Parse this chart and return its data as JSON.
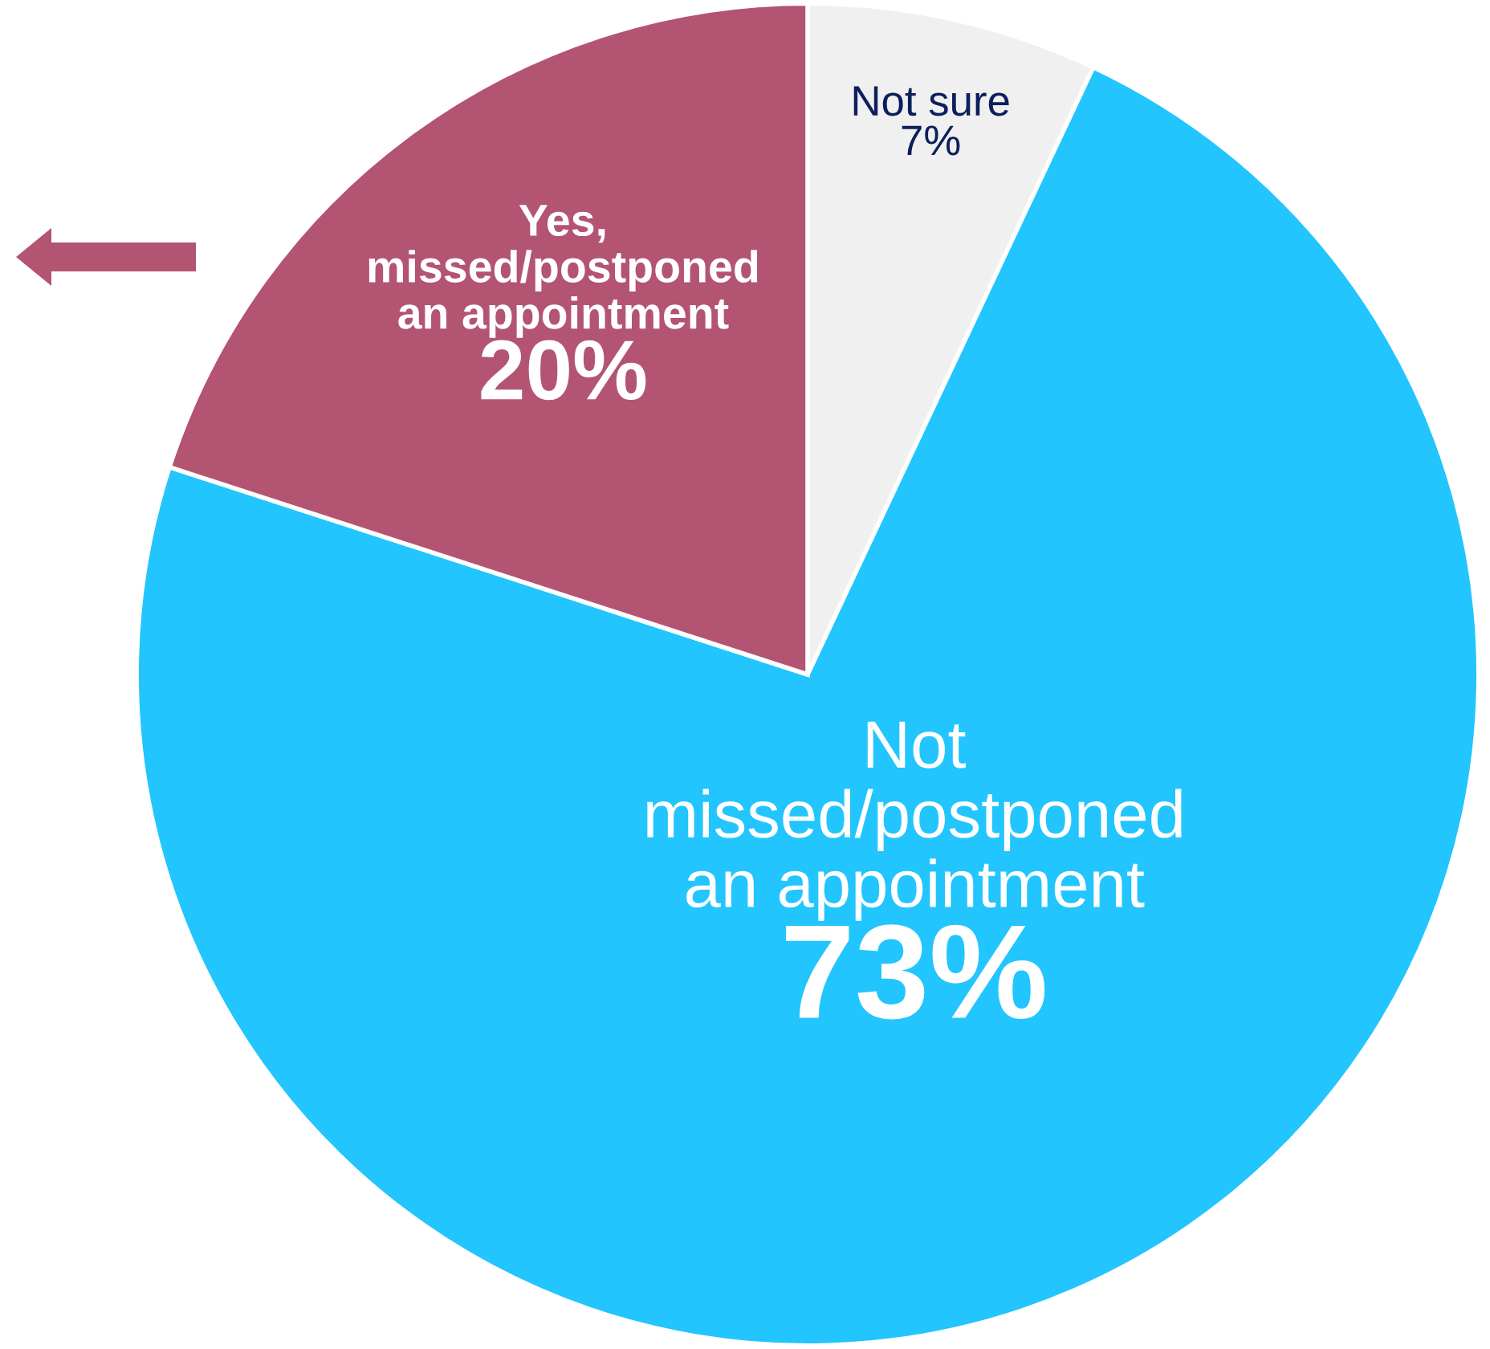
{
  "chart_data": {
    "type": "pie",
    "categories": [
      "Not sure",
      "Not\nmissed/postponed\nan appointment",
      "Yes,\nmissed/postponed\nan appointment"
    ],
    "values": [
      7,
      73,
      20
    ],
    "value_labels": [
      "7%",
      "73%",
      "20%"
    ],
    "colors": [
      "#f0f0f0",
      "#22c5fd",
      "#b35472"
    ]
  }
}
